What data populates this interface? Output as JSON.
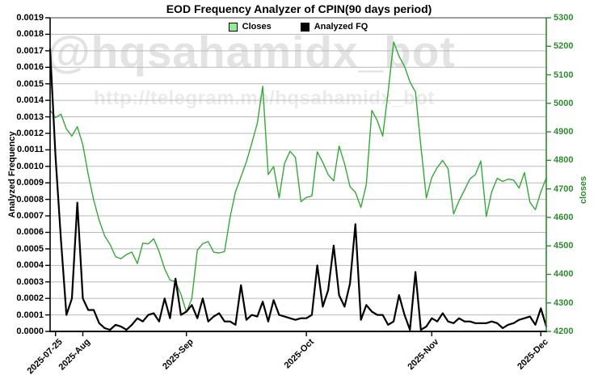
{
  "watermark": {
    "line1": "@hqsahamidx_bot",
    "line2": "http://telegram.me/hqsahamidx_bot"
  },
  "colors": {
    "closes_line": "#35a839",
    "closes_swatch": "#90ee90",
    "analyzed_fq_line": "#000000",
    "right_axis": "#2e8b2e",
    "gridline": "#b9b9b9",
    "plot_top_border": "#3c3c3c",
    "watermark_large": "#e3e3e3",
    "watermark_small": "#ebebeb"
  },
  "chart_data": {
    "type": "line",
    "title": "EOD Frequency Analyzer of CPIN(90 days period)",
    "legend_position": "top-center",
    "grid": "horizontal",
    "n_points": 92,
    "x_ticks": [
      {
        "label": "2025-07-25",
        "index": 1
      },
      {
        "label": "2025-Aug",
        "index": 6
      },
      {
        "label": "2025-Sep",
        "index": 25
      },
      {
        "label": "2025-Oct",
        "index": 47
      },
      {
        "label": "2025-Nov",
        "index": 70
      },
      {
        "label": "2025-Dec",
        "index": 90
      }
    ],
    "y_left": {
      "label": "Analyzed Frequency",
      "min": 0,
      "max": 0.0019,
      "step": 0.0001,
      "tick_labels": [
        "0.0000",
        "0.0001",
        "0.0002",
        "0.0003",
        "0.0004",
        "0.0005",
        "0.0006",
        "0.0007",
        "0.0008",
        "0.0009",
        "0.0010",
        "0.0011",
        "0.0012",
        "0.0013",
        "0.0014",
        "0.0015",
        "0.0016",
        "0.0017",
        "0.0018",
        "0.0019"
      ]
    },
    "y_right": {
      "label": "closes",
      "min": 4200,
      "max": 5300,
      "step": 100,
      "tick_labels": [
        "4200",
        "4300",
        "4400",
        "4500",
        "4600",
        "4700",
        "4800",
        "4900",
        "5000",
        "5100",
        "5200",
        "5300"
      ]
    },
    "series": [
      {
        "name": "Closes",
        "axis": "right",
        "color": "#35a839",
        "line_width": 1.4,
        "values": [
          4975,
          4950,
          4962,
          4910,
          4885,
          4918,
          4855,
          4750,
          4660,
          4590,
          4535,
          4505,
          4462,
          4455,
          4470,
          4478,
          4438,
          4510,
          4507,
          4525,
          4480,
          4420,
          4380,
          4375,
          4330,
          4268,
          4315,
          4485,
          4508,
          4515,
          4478,
          4475,
          4480,
          4600,
          4690,
          4742,
          4795,
          4860,
          4930,
          5060,
          4750,
          4778,
          4668,
          4790,
          4832,
          4810,
          4655,
          4670,
          4675,
          4830,
          4793,
          4750,
          4728,
          4850,
          4788,
          4708,
          4688,
          4635,
          4715,
          4975,
          4940,
          4885,
          5040,
          5215,
          5165,
          5130,
          5075,
          5040,
          4850,
          4668,
          4740,
          4775,
          4800,
          4770,
          4612,
          4658,
          4696,
          4735,
          4750,
          4798,
          4603,
          4690,
          4737,
          4726,
          4734,
          4731,
          4703,
          4757,
          4653,
          4627,
          4690,
          4738
        ]
      },
      {
        "name": "Analyzed FQ",
        "axis": "left",
        "color": "#000000",
        "line_width": 2.2,
        "values": [
          0.00171,
          0.00106,
          0.00055,
          0.0001,
          0.0002,
          0.00078,
          0.0002,
          0.00013,
          0.00013,
          5e-05,
          2e-05,
          1e-05,
          4e-05,
          3e-05,
          1e-05,
          4e-05,
          8e-05,
          6e-05,
          0.0001,
          0.00011,
          6e-05,
          0.0002,
          8e-05,
          0.00032,
          0.0001,
          0.00012,
          0.00016,
          8e-05,
          0.0002,
          6e-05,
          9e-05,
          0.00011,
          6e-05,
          6e-05,
          4e-05,
          0.00028,
          7e-05,
          0.0001,
          9e-05,
          0.00018,
          6e-05,
          0.00019,
          0.0001,
          9e-05,
          8e-05,
          7e-05,
          8e-05,
          8e-05,
          0.0001,
          0.0004,
          0.00015,
          0.00025,
          0.00052,
          0.00022,
          0.00015,
          0.00029,
          0.00065,
          7e-05,
          0.00016,
          0.00012,
          0.0001,
          0.0001,
          4e-05,
          6e-05,
          0.00022,
          0.0001,
          1e-05,
          0.00036,
          1e-05,
          3e-05,
          8e-05,
          6e-05,
          0.00011,
          6e-05,
          5e-05,
          8e-05,
          6e-05,
          6e-05,
          5e-05,
          5e-05,
          5e-05,
          6e-05,
          5e-05,
          2e-05,
          4e-05,
          5e-05,
          7e-05,
          8e-05,
          9e-05,
          4e-05,
          0.00014,
          3e-05
        ]
      }
    ]
  }
}
